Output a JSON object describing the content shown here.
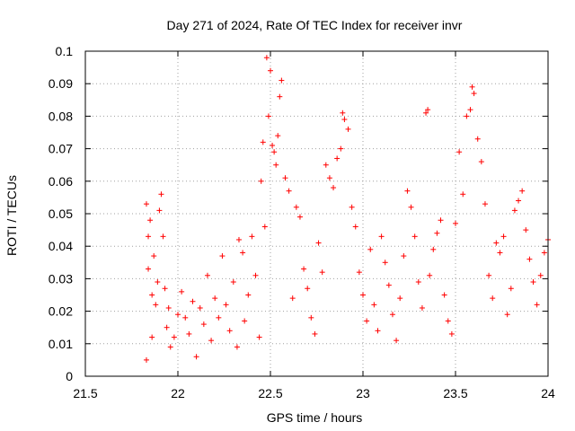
{
  "chart_data": {
    "type": "scatter",
    "title": "Day 271 of 2024, Rate Of TEC Index for receiver invr",
    "xlabel": "GPS time / hours",
    "ylabel": "ROTI / TECUs",
    "xlim": [
      21.5,
      24
    ],
    "ylim": [
      0,
      0.1
    ],
    "xticks": [
      21.5,
      22,
      22.5,
      23,
      23.5,
      24
    ],
    "xtick_labels": [
      "21.5",
      "22",
      "22.5",
      "23",
      "23.5",
      "24"
    ],
    "yticks": [
      0,
      0.01,
      0.02,
      0.03,
      0.04,
      0.05,
      0.06,
      0.07,
      0.08,
      0.09,
      0.1
    ],
    "ytick_labels": [
      "0",
      "0.01",
      "0.02",
      "0.03",
      "0.04",
      "0.05",
      "0.06",
      "0.07",
      "0.08",
      "0.09",
      "0.1"
    ],
    "grid": true,
    "marker": "+",
    "marker_color": "#ff0000",
    "series": [
      {
        "name": "ROTI",
        "x": [
          21.83,
          21.83,
          21.84,
          21.84,
          21.85,
          21.86,
          21.86,
          21.87,
          21.88,
          21.89,
          21.9,
          21.91,
          21.92,
          21.93,
          21.94,
          21.95,
          21.96,
          21.98,
          22.0,
          22.02,
          22.04,
          22.06,
          22.08,
          22.1,
          22.12,
          22.14,
          22.16,
          22.18,
          22.2,
          22.22,
          22.24,
          22.26,
          22.28,
          22.3,
          22.32,
          22.33,
          22.35,
          22.36,
          22.38,
          22.4,
          22.42,
          22.44,
          22.45,
          22.46,
          22.47,
          22.48,
          22.49,
          22.5,
          22.51,
          22.52,
          22.53,
          22.54,
          22.55,
          22.56,
          22.58,
          22.6,
          22.62,
          22.64,
          22.66,
          22.68,
          22.7,
          22.72,
          22.74,
          22.76,
          22.78,
          22.8,
          22.82,
          22.84,
          22.86,
          22.88,
          22.89,
          22.9,
          22.92,
          22.94,
          22.96,
          22.98,
          23.0,
          23.02,
          23.04,
          23.06,
          23.08,
          23.1,
          23.12,
          23.14,
          23.16,
          23.18,
          23.2,
          23.22,
          23.24,
          23.26,
          23.28,
          23.3,
          23.32,
          23.34,
          23.35,
          23.36,
          23.38,
          23.4,
          23.42,
          23.44,
          23.46,
          23.48,
          23.5,
          23.52,
          23.54,
          23.56,
          23.58,
          23.59,
          23.6,
          23.62,
          23.64,
          23.66,
          23.68,
          23.7,
          23.72,
          23.74,
          23.76,
          23.78,
          23.8,
          23.82,
          23.84,
          23.86,
          23.88,
          23.9,
          23.92,
          23.94,
          23.96,
          23.98,
          24.0
        ],
        "y": [
          0.005,
          0.053,
          0.043,
          0.033,
          0.048,
          0.025,
          0.012,
          0.037,
          0.022,
          0.029,
          0.051,
          0.056,
          0.043,
          0.027,
          0.015,
          0.021,
          0.009,
          0.012,
          0.019,
          0.026,
          0.018,
          0.013,
          0.023,
          0.006,
          0.021,
          0.016,
          0.031,
          0.011,
          0.024,
          0.018,
          0.037,
          0.022,
          0.014,
          0.029,
          0.009,
          0.042,
          0.038,
          0.017,
          0.025,
          0.043,
          0.031,
          0.012,
          0.06,
          0.072,
          0.046,
          0.098,
          0.08,
          0.094,
          0.071,
          0.069,
          0.065,
          0.074,
          0.086,
          0.091,
          0.061,
          0.057,
          0.024,
          0.052,
          0.049,
          0.033,
          0.027,
          0.018,
          0.013,
          0.041,
          0.032,
          0.065,
          0.061,
          0.058,
          0.067,
          0.07,
          0.081,
          0.079,
          0.076,
          0.052,
          0.046,
          0.032,
          0.025,
          0.017,
          0.039,
          0.022,
          0.014,
          0.043,
          0.035,
          0.028,
          0.019,
          0.011,
          0.024,
          0.037,
          0.057,
          0.052,
          0.043,
          0.029,
          0.021,
          0.081,
          0.082,
          0.031,
          0.039,
          0.044,
          0.048,
          0.025,
          0.017,
          0.013,
          0.047,
          0.069,
          0.056,
          0.08,
          0.082,
          0.089,
          0.087,
          0.073,
          0.066,
          0.053,
          0.031,
          0.024,
          0.041,
          0.038,
          0.043,
          0.019,
          0.027,
          0.051,
          0.054,
          0.057,
          0.045,
          0.036,
          0.029,
          0.022,
          0.031,
          0.038,
          0.042
        ]
      }
    ]
  }
}
